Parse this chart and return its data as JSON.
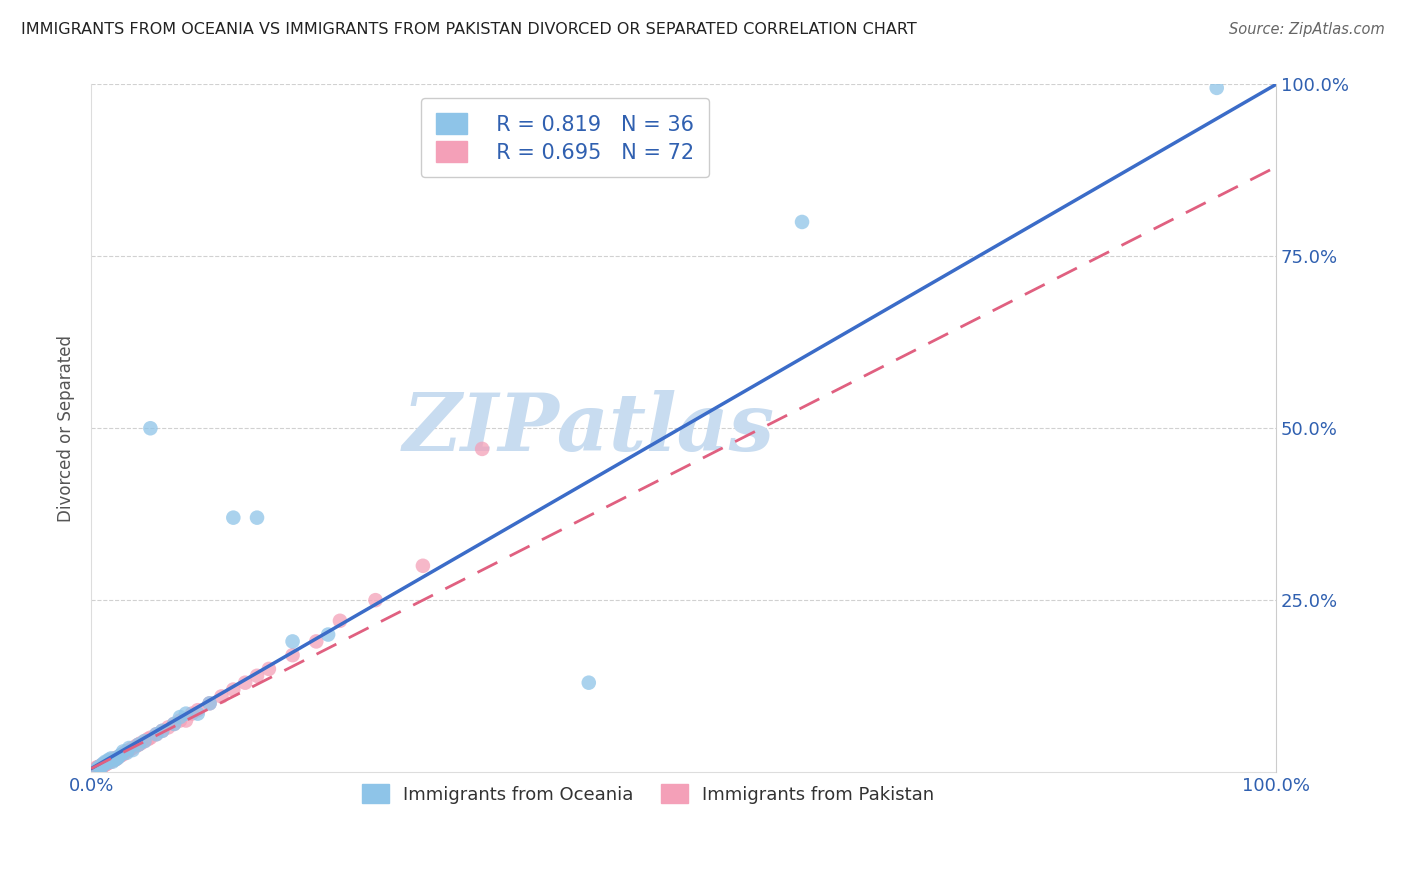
{
  "title": "IMMIGRANTS FROM OCEANIA VS IMMIGRANTS FROM PAKISTAN DIVORCED OR SEPARATED CORRELATION CHART",
  "source": "Source: ZipAtlas.com",
  "ylabel": "Divorced or Separated",
  "xlabel": "",
  "xlim": [
    0.0,
    1.0
  ],
  "ylim": [
    0.0,
    1.0
  ],
  "xticks": [
    0.0,
    0.25,
    0.5,
    0.75,
    1.0
  ],
  "xtick_labels": [
    "0.0%",
    "",
    "",
    "",
    "100.0%"
  ],
  "ytick_labels": [
    "25.0%",
    "50.0%",
    "75.0%",
    "100.0%"
  ],
  "yticks": [
    0.25,
    0.5,
    0.75,
    1.0
  ],
  "legend1_r": "0.819",
  "legend1_n": "36",
  "legend2_r": "0.695",
  "legend2_n": "72",
  "blue_color": "#8EC4E8",
  "pink_color": "#F4A0B8",
  "blue_line_color": "#3B6CC8",
  "pink_line_color": "#E06080",
  "watermark_color": "#C8DCF0",
  "watermark": "ZIPatlas",
  "blue_line_x0": 0.0,
  "blue_line_y0": 0.005,
  "blue_line_x1": 1.0,
  "blue_line_y1": 1.0,
  "pink_line_x0": 0.0,
  "pink_line_y0": 0.005,
  "pink_line_x1": 1.0,
  "pink_line_y1": 0.88,
  "blue_points_x": [
    0.005,
    0.007,
    0.008,
    0.01,
    0.01,
    0.012,
    0.013,
    0.015,
    0.015,
    0.017,
    0.018,
    0.02,
    0.022,
    0.023,
    0.025,
    0.027,
    0.03,
    0.032,
    0.035,
    0.04,
    0.045,
    0.05,
    0.055,
    0.06,
    0.07,
    0.075,
    0.08,
    0.09,
    0.1,
    0.12,
    0.14,
    0.17,
    0.2,
    0.6,
    0.95,
    0.42
  ],
  "blue_points_y": [
    0.005,
    0.008,
    0.006,
    0.012,
    0.01,
    0.015,
    0.013,
    0.018,
    0.016,
    0.02,
    0.015,
    0.018,
    0.02,
    0.022,
    0.025,
    0.03,
    0.028,
    0.035,
    0.032,
    0.04,
    0.045,
    0.5,
    0.055,
    0.06,
    0.07,
    0.08,
    0.085,
    0.085,
    0.1,
    0.37,
    0.37,
    0.19,
    0.2,
    0.8,
    0.995,
    0.13
  ],
  "pink_points_x": [
    0.003,
    0.004,
    0.004,
    0.005,
    0.005,
    0.006,
    0.006,
    0.006,
    0.007,
    0.007,
    0.007,
    0.008,
    0.008,
    0.008,
    0.009,
    0.009,
    0.01,
    0.01,
    0.01,
    0.011,
    0.011,
    0.012,
    0.012,
    0.013,
    0.013,
    0.014,
    0.014,
    0.015,
    0.015,
    0.016,
    0.016,
    0.017,
    0.018,
    0.018,
    0.019,
    0.02,
    0.02,
    0.021,
    0.022,
    0.023,
    0.025,
    0.027,
    0.028,
    0.03,
    0.032,
    0.035,
    0.038,
    0.04,
    0.042,
    0.045,
    0.048,
    0.05,
    0.055,
    0.06,
    0.065,
    0.07,
    0.075,
    0.08,
    0.085,
    0.09,
    0.1,
    0.11,
    0.12,
    0.13,
    0.14,
    0.15,
    0.17,
    0.19,
    0.21,
    0.24,
    0.28,
    0.33
  ],
  "pink_points_y": [
    0.003,
    0.005,
    0.004,
    0.006,
    0.007,
    0.005,
    0.006,
    0.007,
    0.006,
    0.007,
    0.008,
    0.007,
    0.008,
    0.009,
    0.008,
    0.01,
    0.009,
    0.01,
    0.011,
    0.01,
    0.012,
    0.011,
    0.013,
    0.012,
    0.014,
    0.013,
    0.015,
    0.014,
    0.016,
    0.015,
    0.017,
    0.016,
    0.018,
    0.017,
    0.019,
    0.018,
    0.02,
    0.019,
    0.021,
    0.022,
    0.024,
    0.026,
    0.028,
    0.03,
    0.032,
    0.035,
    0.038,
    0.04,
    0.042,
    0.045,
    0.048,
    0.05,
    0.055,
    0.06,
    0.065,
    0.07,
    0.075,
    0.075,
    0.085,
    0.09,
    0.1,
    0.11,
    0.12,
    0.13,
    0.14,
    0.15,
    0.17,
    0.19,
    0.22,
    0.25,
    0.3,
    0.47
  ]
}
